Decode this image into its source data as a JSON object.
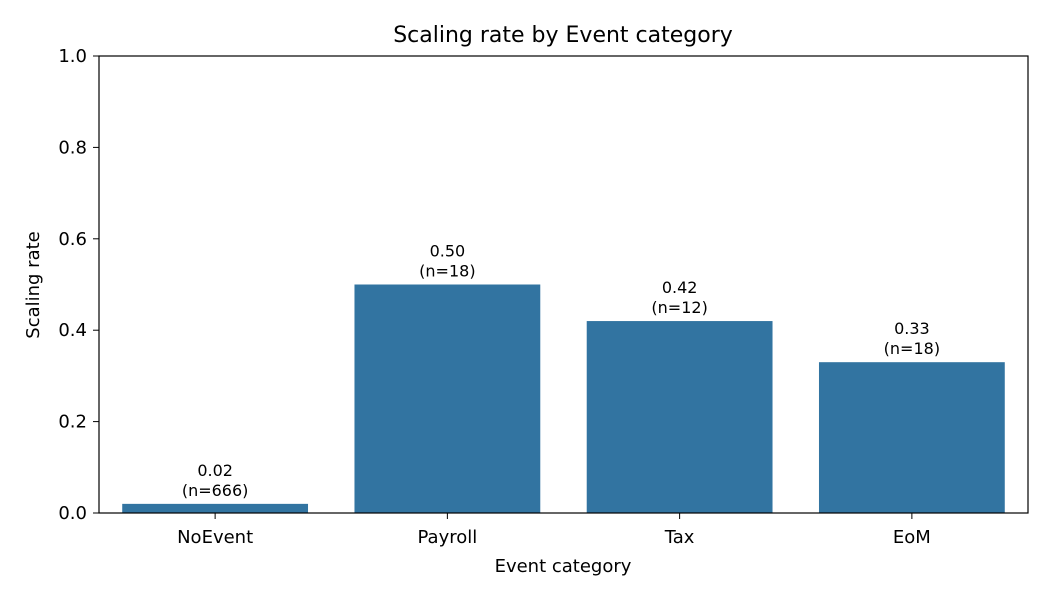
{
  "chart_data": {
    "type": "bar",
    "title": "Scaling rate by Event category",
    "xlabel": "Event category",
    "ylabel": "Scaling rate",
    "ylim": [
      0,
      1.0
    ],
    "yticks": [
      "0.0",
      "0.2",
      "0.4",
      "0.6",
      "0.8",
      "1.0"
    ],
    "categories": [
      "NoEvent",
      "Payroll",
      "Tax",
      "EoM"
    ],
    "values": [
      0.02,
      0.5,
      0.42,
      0.33
    ],
    "value_labels": [
      "0.02",
      "0.50",
      "0.42",
      "0.33"
    ],
    "counts": [
      "(n=666)",
      "(n=18)",
      "(n=12)",
      "(n=18)"
    ],
    "bar_color": "#3274a1",
    "grid": false,
    "legend": "none"
  }
}
